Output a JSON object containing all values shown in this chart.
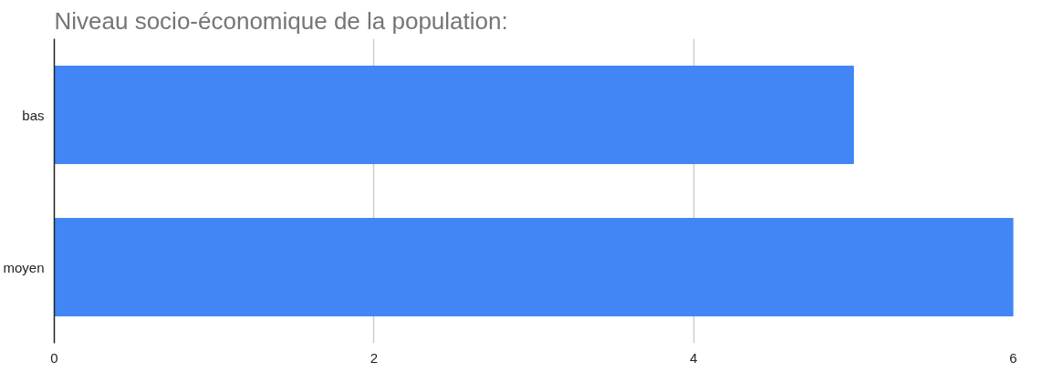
{
  "chart_data": {
    "type": "bar",
    "orientation": "horizontal",
    "title": "Niveau socio-économique de la population:",
    "categories": [
      "bas",
      "moyen"
    ],
    "values": [
      5,
      6
    ],
    "color": "#4285f4",
    "xlim": [
      0,
      6
    ],
    "xticks": [
      0,
      2,
      4,
      6
    ],
    "grid": "x"
  }
}
